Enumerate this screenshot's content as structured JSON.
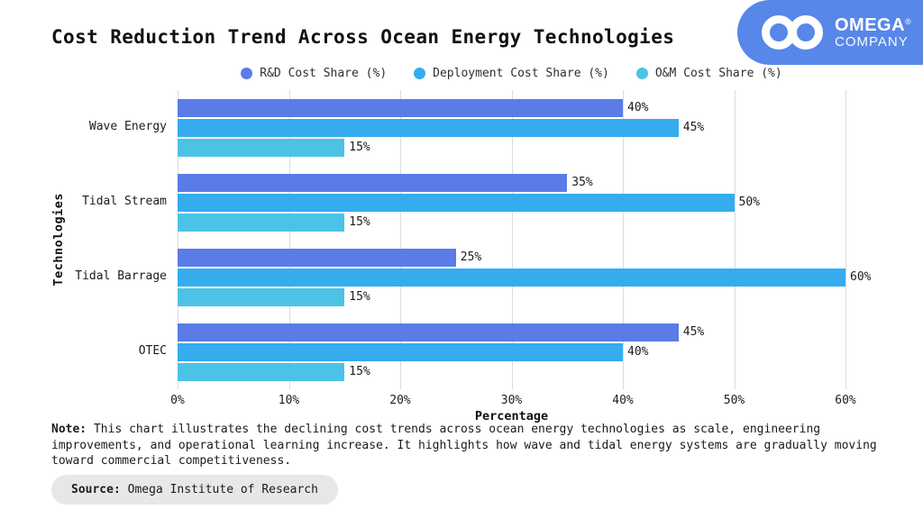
{
  "header": {
    "logo": {
      "name": "OMEGA",
      "mark": "®",
      "subtitle": "COMPANY",
      "bg_color": "#5787e8",
      "text_color": "#ffffff"
    }
  },
  "chart_data": {
    "type": "bar",
    "orientation": "horizontal",
    "title": "Cost Reduction Trend Across Ocean Energy Technologies",
    "xlabel": "Percentage",
    "ylabel": "Technologies",
    "categories": [
      "Wave Energy",
      "Tidal Stream",
      "Tidal Barrage",
      "OTEC"
    ],
    "series": [
      {
        "name": "R&D Cost Share (%)",
        "color": "#5b7ce6",
        "values": [
          40,
          35,
          25,
          45
        ]
      },
      {
        "name": "Deployment Cost Share (%)",
        "color": "#35acee",
        "values": [
          45,
          50,
          60,
          40
        ]
      },
      {
        "name": "O&M Cost Share (%)",
        "color": "#4cc3e6",
        "values": [
          15,
          15,
          15,
          15
        ]
      }
    ],
    "xlim": [
      0,
      60
    ],
    "xticks": [
      "0%",
      "10%",
      "20%",
      "30%",
      "40%",
      "50%",
      "60%"
    ],
    "grid": true,
    "gridline_color": "#dbdbdb",
    "legend_position": "top",
    "value_label_suffix": "%"
  },
  "note": {
    "label": "Note:",
    "text": "This chart illustrates the declining cost trends across ocean energy technologies as scale, engineering improvements, and operational learning increase. It highlights how wave and tidal energy systems are gradually moving toward commercial competitiveness."
  },
  "source": {
    "label": "Source:",
    "text": "Omega Institute of Research"
  }
}
